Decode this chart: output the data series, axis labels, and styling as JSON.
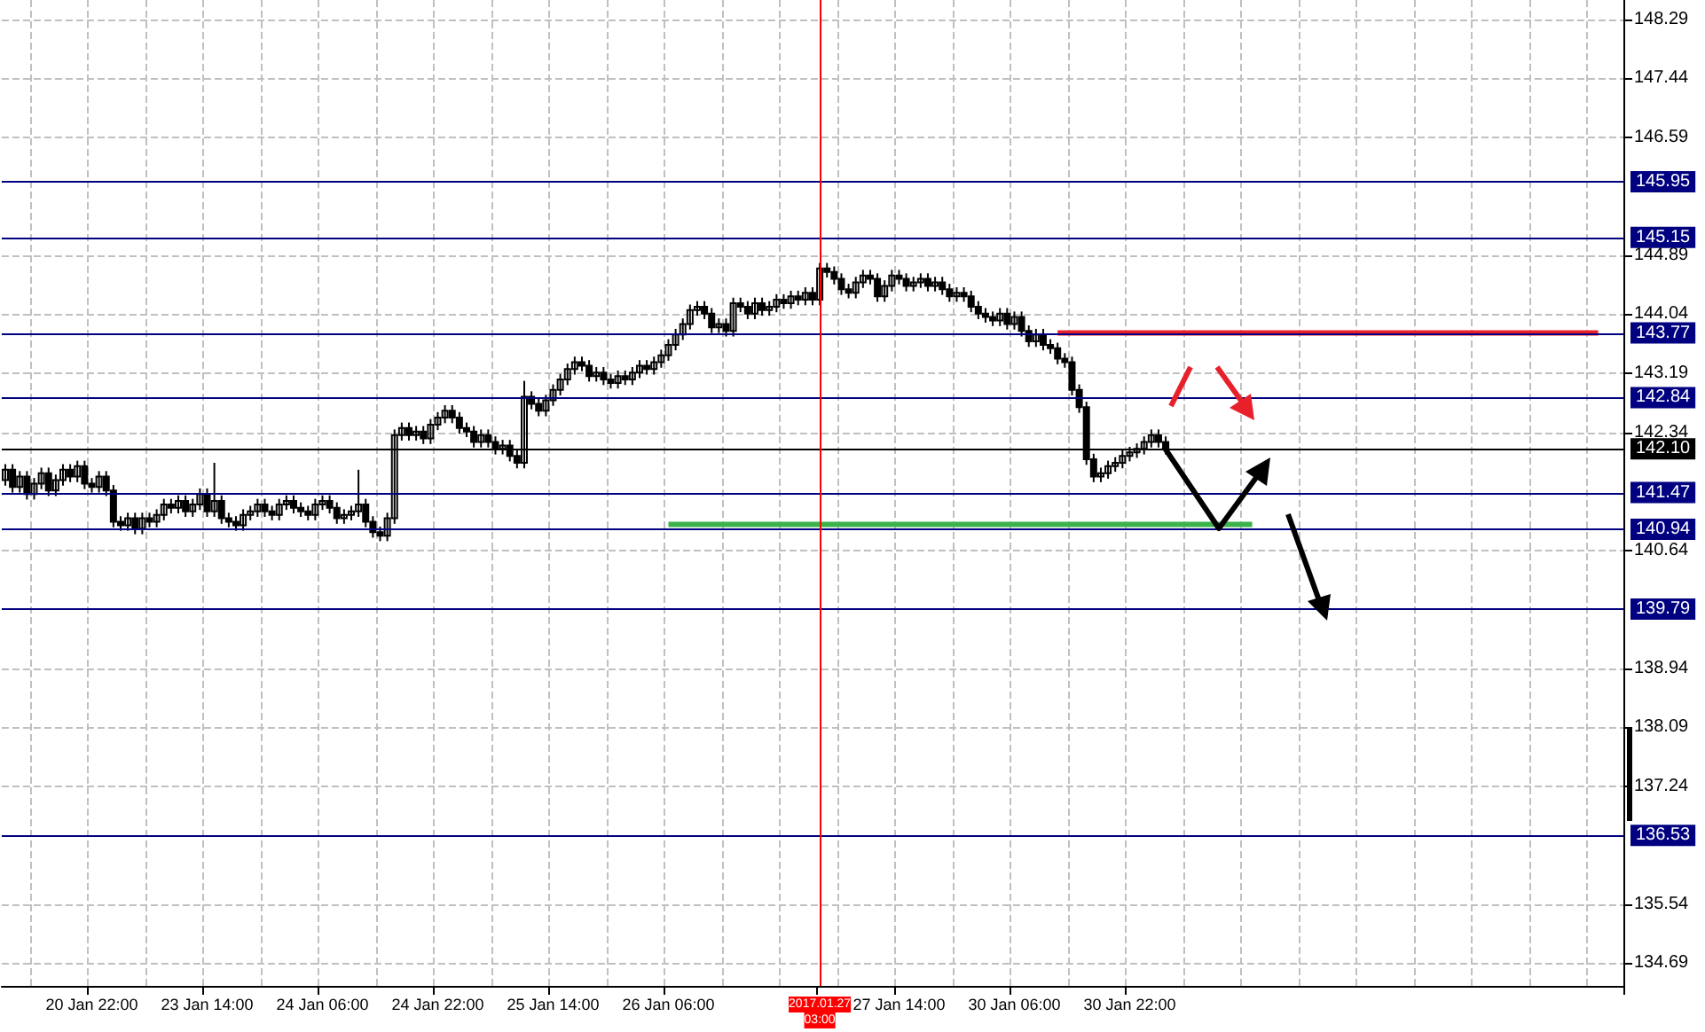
{
  "chart_data": {
    "type": "candlestick",
    "categories": [
      null,
      null,
      null,
      null,
      null,
      null,
      null,
      null,
      null,
      null,
      null,
      null,
      "20 Jan 22:00",
      null,
      null,
      null,
      null,
      null,
      null,
      null,
      null,
      null,
      null,
      null,
      null,
      null,
      null,
      null,
      "23 Jan 14:00",
      null,
      null,
      null,
      null,
      null,
      null,
      null,
      null,
      null,
      null,
      null,
      null,
      null,
      null,
      null,
      "24 Jan 06:00",
      null,
      null,
      null,
      null,
      null,
      null,
      null,
      null,
      null,
      null,
      null,
      null,
      null,
      null,
      null,
      "24 Jan 22:00",
      null,
      null,
      null,
      null,
      null,
      null,
      null,
      null,
      null,
      null,
      null,
      null,
      null,
      null,
      null,
      "25 Jan 14:00",
      null,
      null,
      null,
      null,
      null,
      null,
      null,
      null,
      null,
      null,
      null,
      null,
      null,
      null,
      null,
      "26 Jan 06:00",
      null,
      null,
      null,
      null,
      null,
      null,
      null,
      null,
      null,
      null,
      null,
      null,
      null,
      null,
      null,
      null,
      null,
      null,
      null,
      null,
      "2017.01.27 03:00",
      null,
      null,
      null,
      null,
      null,
      null,
      null,
      null,
      null,
      null,
      "27 Jan 14:00",
      null,
      null,
      null,
      null,
      null,
      null,
      null,
      null,
      null,
      null,
      null,
      null,
      null,
      null,
      null,
      "30 Jan 06:00",
      null,
      null,
      null,
      null,
      null,
      null,
      null,
      null,
      null,
      null,
      null,
      null,
      null,
      null,
      null,
      "30 Jan 22:00",
      null,
      null,
      null,
      null,
      null,
      null,
      null,
      null,
      null,
      null,
      null,
      null,
      null,
      null,
      null,
      null,
      null,
      null,
      null,
      null,
      null,
      null,
      null,
      null,
      null,
      null,
      null,
      null,
      null,
      null,
      null,
      null,
      null,
      null,
      null,
      null,
      null,
      null,
      null,
      null,
      null,
      null,
      null,
      null,
      null,
      null,
      null,
      null,
      null,
      null,
      null,
      null,
      null,
      null,
      null,
      null,
      null,
      null,
      null,
      null,
      null,
      null,
      null,
      null,
      null,
      null,
      null,
      null
    ],
    "series": [
      {
        "color": "#000000",
        "ohlc": [
          [
            141.65,
            141.88,
            141.57,
            141.8
          ],
          [
            141.8,
            141.88,
            141.47,
            141.55
          ],
          [
            141.55,
            141.78,
            141.47,
            141.7
          ],
          [
            141.7,
            141.78,
            141.37,
            141.45
          ],
          [
            141.45,
            141.68,
            141.37,
            141.6
          ],
          [
            141.6,
            141.83,
            141.52,
            141.75
          ],
          [
            141.75,
            141.83,
            141.42,
            141.5
          ],
          [
            141.5,
            141.73,
            141.42,
            141.65
          ],
          [
            141.65,
            141.88,
            141.57,
            141.8
          ],
          [
            141.8,
            141.88,
            141.62,
            141.7
          ],
          [
            141.7,
            141.93,
            141.62,
            141.85
          ],
          [
            141.85,
            141.93,
            141.52,
            141.6
          ],
          [
            141.6,
            141.68,
            141.47,
            141.55
          ],
          [
            141.55,
            141.78,
            141.47,
            141.7
          ],
          [
            141.7,
            141.78,
            141.42,
            141.5
          ],
          [
            141.5,
            141.58,
            140.97,
            141.05
          ],
          [
            141.05,
            141.13,
            140.92,
            141.0
          ],
          [
            141.0,
            141.18,
            140.92,
            141.1
          ],
          [
            141.1,
            141.18,
            140.87,
            140.95
          ],
          [
            140.95,
            141.18,
            140.87,
            141.1
          ],
          [
            141.1,
            141.18,
            140.97,
            141.05
          ],
          [
            141.05,
            141.23,
            140.97,
            141.15
          ],
          [
            141.15,
            141.38,
            141.07,
            141.3
          ],
          [
            141.3,
            141.38,
            141.17,
            141.25
          ],
          [
            141.25,
            141.43,
            141.17,
            141.35
          ],
          [
            141.35,
            141.43,
            141.12,
            141.2
          ],
          [
            141.2,
            141.38,
            141.12,
            141.3
          ],
          [
            141.3,
            141.53,
            141.22,
            141.45
          ],
          [
            141.45,
            141.53,
            141.12,
            141.2
          ],
          [
            141.2,
            141.9,
            141.12,
            141.35
          ],
          [
            141.35,
            141.43,
            141.02,
            141.1
          ],
          [
            141.1,
            141.18,
            140.97,
            141.05
          ],
          [
            141.05,
            141.13,
            140.92,
            141.0
          ],
          [
            141.0,
            141.23,
            140.92,
            141.15
          ],
          [
            141.15,
            141.28,
            141.07,
            141.2
          ],
          [
            141.2,
            141.38,
            141.12,
            141.3
          ],
          [
            141.3,
            141.38,
            141.12,
            141.2
          ],
          [
            141.2,
            141.28,
            141.07,
            141.15
          ],
          [
            141.15,
            141.38,
            141.07,
            141.3
          ],
          [
            141.3,
            141.43,
            141.22,
            141.35
          ],
          [
            141.35,
            141.43,
            141.17,
            141.25
          ],
          [
            141.25,
            141.33,
            141.12,
            141.2
          ],
          [
            141.2,
            141.28,
            141.07,
            141.15
          ],
          [
            141.15,
            141.38,
            141.07,
            141.3
          ],
          [
            141.3,
            141.43,
            141.22,
            141.35
          ],
          [
            141.35,
            141.43,
            141.17,
            141.25
          ],
          [
            141.25,
            141.33,
            141.02,
            141.1
          ],
          [
            141.1,
            141.23,
            141.02,
            141.15
          ],
          [
            141.15,
            141.28,
            141.07,
            141.2
          ],
          [
            141.2,
            141.8,
            141.12,
            141.3
          ],
          [
            141.3,
            141.38,
            140.97,
            141.05
          ],
          [
            141.05,
            141.13,
            140.82,
            140.9
          ],
          [
            140.9,
            140.98,
            140.77,
            140.85
          ],
          [
            140.85,
            141.18,
            140.77,
            141.1
          ],
          [
            141.1,
            142.38,
            141.02,
            142.3
          ],
          [
            142.3,
            142.48,
            142.22,
            142.4
          ],
          [
            142.4,
            142.48,
            142.22,
            142.3
          ],
          [
            142.3,
            142.43,
            142.22,
            142.35
          ],
          [
            142.35,
            142.43,
            142.17,
            142.25
          ],
          [
            142.25,
            142.53,
            142.17,
            142.45
          ],
          [
            142.45,
            142.63,
            142.37,
            142.55
          ],
          [
            142.55,
            142.73,
            142.47,
            142.65
          ],
          [
            142.65,
            142.73,
            142.47,
            142.55
          ],
          [
            142.55,
            142.63,
            142.32,
            142.4
          ],
          [
            142.4,
            142.48,
            142.27,
            142.35
          ],
          [
            142.35,
            142.43,
            142.12,
            142.2
          ],
          [
            142.2,
            142.38,
            142.12,
            142.3
          ],
          [
            142.3,
            142.38,
            142.12,
            142.2
          ],
          [
            142.2,
            142.28,
            142.02,
            142.1
          ],
          [
            142.1,
            142.23,
            142.02,
            142.15
          ],
          [
            142.15,
            142.23,
            141.92,
            142.0
          ],
          [
            142.0,
            142.08,
            141.82,
            141.9
          ],
          [
            141.9,
            143.08,
            141.82,
            142.85
          ],
          [
            142.85,
            142.93,
            142.67,
            142.75
          ],
          [
            142.75,
            142.83,
            142.57,
            142.65
          ],
          [
            142.65,
            142.88,
            142.57,
            142.8
          ],
          [
            142.8,
            143.03,
            142.72,
            142.95
          ],
          [
            142.95,
            143.18,
            142.87,
            143.1
          ],
          [
            143.1,
            143.33,
            143.02,
            143.25
          ],
          [
            143.25,
            143.43,
            143.17,
            143.35
          ],
          [
            143.35,
            143.43,
            143.22,
            143.3
          ],
          [
            143.3,
            143.38,
            143.07,
            143.15
          ],
          [
            143.15,
            143.28,
            143.07,
            143.2
          ],
          [
            143.2,
            143.28,
            143.02,
            143.1
          ],
          [
            143.1,
            143.18,
            142.97,
            143.05
          ],
          [
            143.05,
            143.23,
            142.97,
            143.15
          ],
          [
            143.15,
            143.23,
            143.02,
            143.1
          ],
          [
            143.1,
            143.28,
            143.02,
            143.2
          ],
          [
            143.2,
            143.38,
            143.12,
            143.3
          ],
          [
            143.3,
            143.38,
            143.17,
            143.25
          ],
          [
            143.25,
            143.43,
            143.17,
            143.35
          ],
          [
            143.35,
            143.53,
            143.27,
            143.45
          ],
          [
            143.45,
            143.68,
            143.37,
            143.6
          ],
          [
            143.6,
            143.83,
            143.52,
            143.75
          ],
          [
            143.75,
            143.98,
            143.67,
            143.9
          ],
          [
            143.9,
            144.18,
            143.82,
            144.1
          ],
          [
            144.1,
            144.23,
            144.02,
            144.15
          ],
          [
            144.15,
            144.23,
            143.97,
            144.05
          ],
          [
            144.05,
            144.13,
            143.77,
            143.85
          ],
          [
            143.85,
            143.98,
            143.77,
            143.9
          ],
          [
            143.9,
            143.98,
            143.72,
            143.8
          ],
          [
            143.8,
            144.28,
            143.72,
            144.2
          ],
          [
            144.2,
            144.28,
            144.07,
            144.15
          ],
          [
            144.15,
            144.23,
            143.97,
            144.05
          ],
          [
            144.05,
            144.28,
            143.97,
            144.2
          ],
          [
            144.2,
            144.28,
            144.02,
            144.1
          ],
          [
            144.1,
            144.23,
            144.02,
            144.15
          ],
          [
            144.15,
            144.33,
            144.07,
            144.25
          ],
          [
            144.25,
            144.33,
            144.12,
            144.2
          ],
          [
            144.2,
            144.38,
            144.12,
            144.3
          ],
          [
            144.3,
            144.38,
            144.17,
            144.25
          ],
          [
            144.25,
            144.43,
            144.17,
            144.35
          ],
          [
            144.35,
            144.43,
            144.17,
            144.25
          ],
          [
            144.25,
            144.78,
            144.17,
            144.7
          ],
          [
            144.7,
            144.78,
            144.57,
            144.65
          ],
          [
            144.65,
            144.73,
            144.47,
            144.55
          ],
          [
            144.55,
            144.63,
            144.32,
            144.4
          ],
          [
            144.4,
            144.48,
            144.27,
            144.35
          ],
          [
            144.35,
            144.58,
            144.27,
            144.5
          ],
          [
            144.5,
            144.68,
            144.42,
            144.6
          ],
          [
            144.6,
            144.68,
            144.47,
            144.55
          ],
          [
            144.55,
            144.63,
            144.22,
            144.3
          ],
          [
            144.3,
            144.53,
            144.22,
            144.45
          ],
          [
            144.45,
            144.68,
            144.37,
            144.6
          ],
          [
            144.6,
            144.68,
            144.47,
            144.55
          ],
          [
            144.55,
            144.63,
            144.37,
            144.45
          ],
          [
            144.45,
            144.58,
            144.37,
            144.5
          ],
          [
            144.5,
            144.63,
            144.42,
            144.55
          ],
          [
            144.55,
            144.63,
            144.37,
            144.45
          ],
          [
            144.45,
            144.58,
            144.37,
            144.5
          ],
          [
            144.5,
            144.58,
            144.32,
            144.4
          ],
          [
            144.4,
            144.48,
            144.22,
            144.3
          ],
          [
            144.3,
            144.43,
            144.22,
            144.35
          ],
          [
            144.35,
            144.43,
            144.22,
            144.3
          ],
          [
            144.3,
            144.38,
            144.07,
            144.15
          ],
          [
            144.15,
            144.23,
            143.97,
            144.05
          ],
          [
            144.05,
            144.13,
            143.92,
            144.0
          ],
          [
            144.0,
            144.08,
            143.87,
            143.95
          ],
          [
            143.95,
            144.13,
            143.87,
            144.05
          ],
          [
            144.05,
            144.13,
            143.82,
            143.9
          ],
          [
            143.9,
            144.08,
            143.82,
            144.0
          ],
          [
            144.0,
            144.08,
            143.72,
            143.8
          ],
          [
            143.8,
            143.88,
            143.57,
            143.65
          ],
          [
            143.65,
            143.83,
            143.57,
            143.75
          ],
          [
            143.75,
            143.83,
            143.52,
            143.6
          ],
          [
            143.6,
            143.68,
            143.47,
            143.55
          ],
          [
            143.55,
            143.63,
            143.32,
            143.4
          ],
          [
            143.4,
            143.48,
            143.27,
            143.35
          ],
          [
            143.35,
            143.43,
            142.87,
            142.95
          ],
          [
            142.95,
            143.03,
            142.62,
            142.7
          ],
          [
            142.7,
            142.78,
            141.87,
            141.95
          ],
          [
            141.95,
            142.03,
            141.62,
            141.7
          ],
          [
            141.7,
            141.83,
            141.62,
            141.75
          ],
          [
            141.75,
            141.93,
            141.67,
            141.85
          ],
          [
            141.85,
            141.98,
            141.77,
            141.9
          ],
          [
            141.9,
            142.08,
            141.82,
            142.0
          ],
          [
            142.0,
            142.13,
            141.92,
            142.05
          ],
          [
            142.05,
            142.18,
            141.97,
            142.1
          ],
          [
            142.1,
            142.28,
            142.02,
            142.2
          ],
          [
            142.2,
            142.38,
            142.12,
            142.3
          ],
          [
            142.3,
            142.38,
            142.12,
            142.2
          ],
          [
            142.2,
            142.28,
            142.02,
            142.1
          ],
          null,
          null,
          null,
          null,
          null,
          null,
          null,
          null,
          null,
          null,
          null,
          null,
          null,
          null,
          null,
          null,
          null,
          null,
          null,
          null,
          null,
          null,
          null,
          null,
          null,
          null,
          null,
          null,
          null,
          null,
          null,
          null,
          null,
          null,
          null,
          null,
          null,
          null,
          null,
          null,
          null,
          null,
          null,
          null,
          null,
          null,
          null,
          null,
          null,
          null,
          null,
          null,
          null,
          null,
          null,
          null,
          null,
          null,
          null,
          null,
          null,
          null,
          null
        ]
      },
      {
        "type": "line",
        "color": "#3cb44b",
        "values": [
          null,
          null,
          null,
          null,
          null,
          null,
          null,
          null,
          null,
          null,
          null,
          null,
          null,
          null,
          null,
          null,
          null,
          null,
          null,
          null,
          null,
          null,
          null,
          null,
          null,
          null,
          null,
          null,
          null,
          null,
          null,
          null,
          null,
          null,
          null,
          null,
          null,
          null,
          null,
          null,
          null,
          null,
          null,
          null,
          null,
          null,
          null,
          null,
          null,
          null,
          null,
          null,
          null,
          null,
          null,
          null,
          null,
          null,
          null,
          null,
          null,
          null,
          null,
          null,
          null,
          null,
          null,
          null,
          null,
          null,
          null,
          null,
          null,
          null,
          null,
          null,
          null,
          null,
          null,
          null,
          null,
          null,
          null,
          null,
          null,
          null,
          null,
          null,
          null,
          null,
          null,
          null,
          141.01,
          141.01,
          141.01,
          141.01,
          141.01,
          141.01,
          141.01,
          141.01,
          141.01,
          141.01,
          141.01,
          141.01,
          141.01,
          141.01,
          141.01,
          141.01,
          141.01,
          141.01,
          141.01,
          141.01,
          141.01,
          141.01,
          141.01,
          141.01,
          141.01,
          141.01,
          141.01,
          141.01,
          141.01,
          141.01,
          141.01,
          141.01,
          141.01,
          141.01,
          141.01,
          141.01,
          141.01,
          141.01,
          141.01,
          141.01,
          141.01,
          141.01,
          141.01,
          141.01,
          141.01,
          141.01,
          141.01,
          141.01,
          141.01,
          141.01,
          141.01,
          141.01,
          141.01,
          141.01,
          141.01,
          141.01,
          141.01,
          141.01,
          141.01,
          141.01,
          141.01,
          141.01,
          141.01,
          141.01,
          141.01,
          141.01,
          141.01,
          141.01,
          141.01,
          141.01,
          141.01,
          141.01,
          141.01,
          141.01,
          141.01,
          141.01,
          141.01,
          141.01,
          141.01,
          141.01,
          141.01,
          141.01,
          null,
          null,
          null,
          null,
          null,
          null,
          null,
          null,
          null,
          null,
          null,
          null,
          null,
          null,
          null,
          null,
          null,
          null,
          null,
          null,
          null,
          null,
          null,
          null,
          null,
          null,
          null,
          null,
          null,
          null,
          null,
          null,
          null,
          null,
          null,
          null,
          null,
          null,
          null,
          null,
          null,
          null,
          null,
          null,
          null,
          null,
          null,
          null,
          null,
          null,
          null
        ]
      },
      {
        "type": "line",
        "color": "#e8202a",
        "values": [
          null,
          null,
          null,
          null,
          null,
          null,
          null,
          null,
          null,
          null,
          null,
          null,
          null,
          null,
          null,
          null,
          null,
          null,
          null,
          null,
          null,
          null,
          null,
          null,
          null,
          null,
          null,
          null,
          null,
          null,
          null,
          null,
          null,
          null,
          null,
          null,
          null,
          null,
          null,
          null,
          null,
          null,
          null,
          null,
          null,
          null,
          null,
          null,
          null,
          null,
          null,
          null,
          null,
          null,
          null,
          null,
          null,
          null,
          null,
          null,
          null,
          null,
          null,
          null,
          null,
          null,
          null,
          null,
          null,
          null,
          null,
          null,
          null,
          null,
          null,
          null,
          null,
          null,
          null,
          null,
          null,
          null,
          null,
          null,
          null,
          null,
          null,
          null,
          null,
          null,
          null,
          null,
          null,
          null,
          null,
          null,
          null,
          null,
          null,
          null,
          null,
          null,
          null,
          null,
          null,
          null,
          null,
          null,
          null,
          null,
          null,
          null,
          null,
          null,
          null,
          null,
          null,
          null,
          null,
          null,
          null,
          null,
          null,
          null,
          null,
          null,
          null,
          null,
          null,
          null,
          null,
          null,
          null,
          null,
          null,
          null,
          null,
          null,
          null,
          null,
          null,
          null,
          null,
          null,
          null,
          null,
          143.77,
          143.77,
          143.77,
          143.77,
          143.77,
          143.77,
          143.77,
          143.77,
          143.77,
          143.77,
          143.77,
          143.77,
          143.77,
          143.77,
          143.77,
          143.77,
          143.77,
          143.77,
          143.77,
          143.77,
          143.77,
          143.77,
          143.77,
          143.77,
          143.77,
          143.77,
          143.77,
          143.77,
          143.77,
          143.77,
          143.77,
          143.77,
          143.77,
          143.77,
          143.77,
          143.77,
          143.77,
          143.77,
          143.77,
          143.77,
          143.77,
          143.77,
          143.77,
          143.77,
          143.77,
          143.77,
          143.77,
          143.77,
          143.77,
          143.77,
          143.77,
          143.77,
          143.77,
          143.77,
          143.77,
          143.77,
          143.77,
          143.77,
          143.77,
          143.77,
          143.77,
          143.77,
          143.77,
          143.77,
          143.77,
          143.77,
          143.77,
          143.77,
          143.77,
          143.77,
          143.77,
          143.77,
          143.77,
          143.77,
          143.77,
          143.77,
          null,
          null,
          null
        ]
      }
    ],
    "ylim": [
      134.36,
      148.57
    ],
    "yticks": [
      134.69,
      135.54,
      137.24,
      138.09,
      138.94,
      140.64,
      142.34,
      143.19,
      144.04,
      144.89,
      146.59,
      147.44,
      148.29
    ],
    "grid": true,
    "ref_lines": [
      {
        "axis": "y",
        "value": 145.95,
        "label": "145.95",
        "color": "#000080"
      },
      {
        "axis": "y",
        "value": 145.15,
        "label": "145.15",
        "color": "#000080"
      },
      {
        "axis": "y",
        "value": 143.77,
        "label": "143.77",
        "color": "#000080"
      },
      {
        "axis": "y",
        "value": 142.84,
        "label": "142.84",
        "color": "#000080"
      },
      {
        "axis": "y",
        "value": 142.1,
        "label": "142.10",
        "color": "#000000"
      },
      {
        "axis": "y",
        "value": 141.47,
        "label": "141.47",
        "color": "#000080"
      },
      {
        "axis": "y",
        "value": 140.94,
        "label": "140.94",
        "color": "#000080"
      },
      {
        "axis": "y",
        "value": 139.79,
        "label": "139.79",
        "color": "#000080"
      },
      {
        "axis": "y",
        "value": 136.53,
        "label": "136.53",
        "color": "#000080"
      },
      {
        "axis": "x",
        "value": "2017.01.27 03:00",
        "color": "#ff0000"
      }
    ]
  }
}
